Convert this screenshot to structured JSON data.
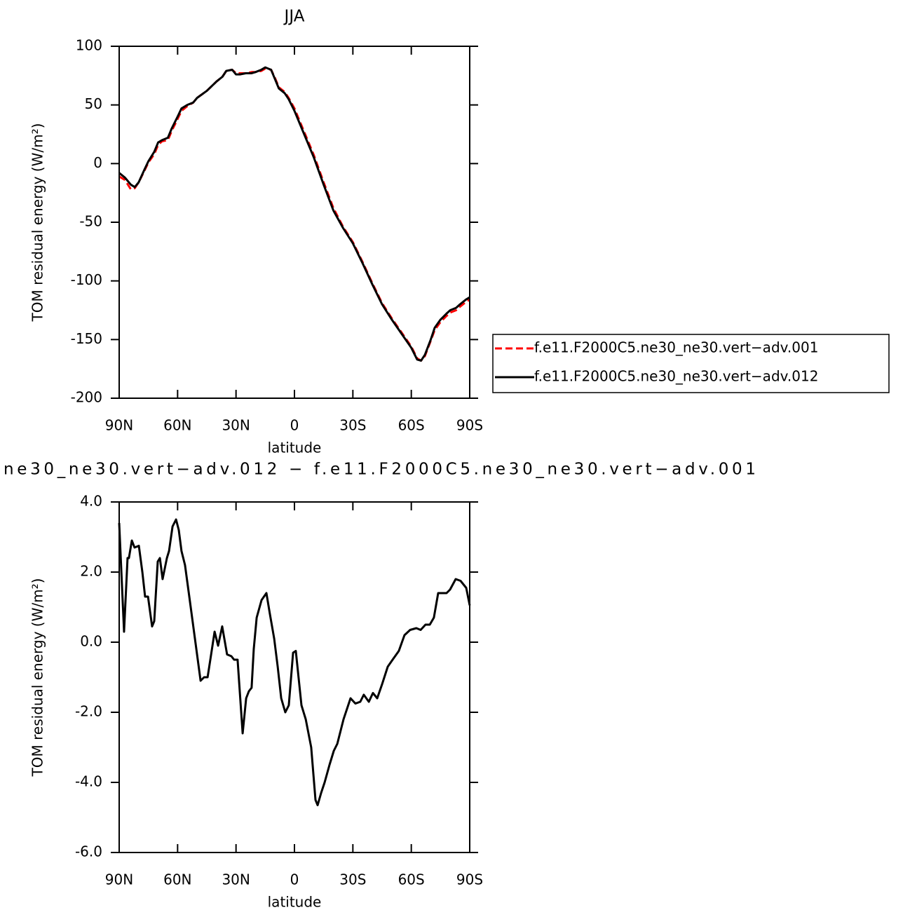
{
  "chart_data": [
    {
      "type": "line",
      "title": "JJA",
      "x_label": "latitude",
      "y_label": "TOM residual energy (W/m²)",
      "x": [
        90,
        87,
        84,
        82,
        80,
        77,
        75,
        72,
        70,
        68,
        65,
        63,
        60,
        58,
        55,
        52,
        50,
        45,
        40,
        37,
        35,
        32,
        30,
        28,
        25,
        22,
        20,
        17,
        15,
        12,
        10,
        8,
        5,
        3,
        0,
        -5,
        -10,
        -15,
        -20,
        -25,
        -30,
        -35,
        -40,
        -45,
        -50,
        -55,
        -60,
        -63,
        -65,
        -67,
        -70,
        -72,
        -75,
        -78,
        -80,
        -83,
        -85,
        -88,
        -90
      ],
      "series": [
        {
          "name": "f.e11.F2000C5.ne30_ne30.vert−adv.001",
          "color": "#ff0000",
          "dashed": true,
          "values": [
            -11,
            -14,
            -22,
            -21,
            -16,
            -6,
            1,
            8,
            16,
            19,
            20,
            28,
            38,
            45,
            49,
            52,
            56,
            62,
            70,
            74,
            79,
            80,
            77,
            77,
            77,
            78,
            78,
            79,
            81,
            80,
            73,
            65,
            61,
            56,
            47,
            27,
            7,
            -16,
            -38,
            -54,
            -67,
            -84,
            -102,
            -119,
            -132,
            -144,
            -156,
            -166,
            -168,
            -164,
            -151,
            -142,
            -135,
            -130,
            -127,
            -125,
            -122,
            -118,
            -116
          ]
        },
        {
          "name": "f.e11.F2000C5.ne30_ne30.vert−adv.012",
          "color": "#000000",
          "dashed": false,
          "values": [
            -8,
            -12,
            -18,
            -20,
            -16,
            -5,
            2,
            10,
            18,
            20,
            22,
            30,
            40,
            47,
            50,
            52,
            56,
            62,
            70,
            74,
            79,
            80,
            76,
            76,
            77,
            77,
            78,
            80,
            82,
            80,
            72,
            64,
            60,
            55,
            45,
            25,
            5,
            -18,
            -40,
            -55,
            -68,
            -85,
            -103,
            -120,
            -133,
            -145,
            -157,
            -167,
            -168,
            -163,
            -150,
            -140,
            -133,
            -128,
            -125,
            -123,
            -120,
            -116,
            -114
          ]
        }
      ],
      "xlim": [
        90,
        -90
      ],
      "xticks": [
        {
          "value": 90,
          "label": "90N"
        },
        {
          "value": 60,
          "label": "60N"
        },
        {
          "value": 30,
          "label": "30N"
        },
        0,
        {
          "value": -30,
          "label": "30S"
        },
        {
          "value": -60,
          "label": "60S"
        },
        {
          "value": -90,
          "label": "90S"
        }
      ],
      "ylim": [
        -200,
        100
      ],
      "yticks": [
        100,
        50,
        0,
        -50,
        -100,
        -150,
        -200
      ]
    },
    {
      "type": "line",
      "title": "ne30_ne30.vert−adv.012 − f.e11.F2000C5.ne30_ne30.vert−adv.001",
      "x_label": "latitude",
      "y_label": "TOM residual energy (W/m²)",
      "x": [
        90,
        87.5,
        85.7,
        85,
        83.5,
        82.1,
        79.9,
        78.1,
        76.7,
        75.2,
        73.1,
        72,
        70.2,
        69.1,
        67.7,
        65.5,
        64.4,
        62.6,
        60.8,
        59.4,
        58,
        56.2,
        54,
        51.1,
        48.2,
        46.4,
        44.6,
        43.2,
        41,
        39.2,
        37.1,
        34.6,
        32.4,
        31,
        29.2,
        26.6,
        24.8,
        23.4,
        22,
        20.9,
        19.4,
        16.9,
        14.4,
        12.6,
        10.4,
        8.6,
        6.8,
        4.7,
        2.9,
        0.7,
        -0.7,
        -3.6,
        -5.8,
        -8.6,
        -10.8,
        -11.9,
        -13.7,
        -15.5,
        -18,
        -20.2,
        -22,
        -25.2,
        -28.8,
        -31.3,
        -33.8,
        -35.6,
        -38.2,
        -40.3,
        -42.5,
        -45,
        -47.9,
        -50.4,
        -53.6,
        -56.5,
        -59.4,
        -62.6,
        -64.8,
        -67.3,
        -69.5,
        -71.6,
        -73.8,
        -76,
        -78.1,
        -79.9,
        -82.8,
        -85.3,
        -88.2,
        -90
      ],
      "color": "#000000",
      "values": [
        3.4,
        0.3,
        2.4,
        2.4,
        2.9,
        2.7,
        2.75,
        2.0,
        1.3,
        1.3,
        0.45,
        0.6,
        2.3,
        2.4,
        1.8,
        2.4,
        2.6,
        3.3,
        3.5,
        3.2,
        2.6,
        2.2,
        1.3,
        0.1,
        -1.1,
        -1.0,
        -1.0,
        -0.5,
        0.3,
        -0.1,
        0.45,
        -0.35,
        -0.4,
        -0.5,
        -0.5,
        -2.6,
        -1.6,
        -1.4,
        -1.3,
        -0.2,
        0.7,
        1.2,
        1.4,
        0.8,
        0.1,
        -0.7,
        -1.6,
        -2.0,
        -1.8,
        -0.3,
        -0.25,
        -1.8,
        -2.2,
        -3.0,
        -4.5,
        -4.65,
        -4.3,
        -4.0,
        -3.5,
        -3.1,
        -2.9,
        -2.2,
        -1.6,
        -1.75,
        -1.7,
        -1.5,
        -1.7,
        -1.45,
        -1.6,
        -1.2,
        -0.7,
        -0.5,
        -0.25,
        0.2,
        0.35,
        0.4,
        0.35,
        0.5,
        0.5,
        0.7,
        1.4,
        1.4,
        1.4,
        1.5,
        1.8,
        1.75,
        1.55,
        1.05
      ],
      "xlim": [
        90,
        -90
      ],
      "xticks": [
        {
          "value": 90,
          "label": "90N"
        },
        {
          "value": 60,
          "label": "60N"
        },
        {
          "value": 30,
          "label": "30N"
        },
        0,
        {
          "value": -30,
          "label": "30S"
        },
        {
          "value": -60,
          "label": "60S"
        },
        {
          "value": -90,
          "label": "90S"
        }
      ],
      "ylim": [
        -6,
        4
      ],
      "yticks": [
        {
          "value": 4,
          "label": "4.0"
        },
        {
          "value": 2,
          "label": "2.0"
        },
        {
          "value": 0,
          "label": "0.0"
        },
        {
          "value": -2,
          "label": "-2.0"
        },
        {
          "value": -4,
          "label": "-4.0"
        },
        {
          "value": -6,
          "label": "-6.0"
        }
      ]
    }
  ]
}
